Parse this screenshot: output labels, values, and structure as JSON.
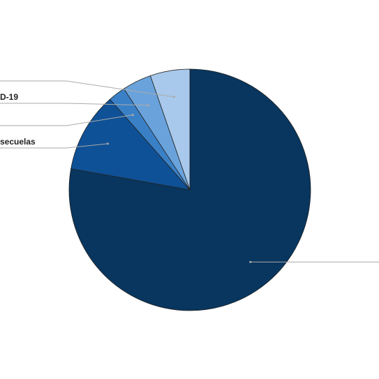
{
  "chart_data": {
    "type": "pie",
    "categories": [
      null,
      "secuelas",
      null,
      "D-19",
      null
    ],
    "values": [
      77.8,
      10.7,
      2.3,
      3.9,
      5.3
    ],
    "colors": [
      "#08365f",
      "#0f5196",
      "#3a80c6",
      "#6aa3dc",
      "#a8c9eb"
    ]
  }
}
